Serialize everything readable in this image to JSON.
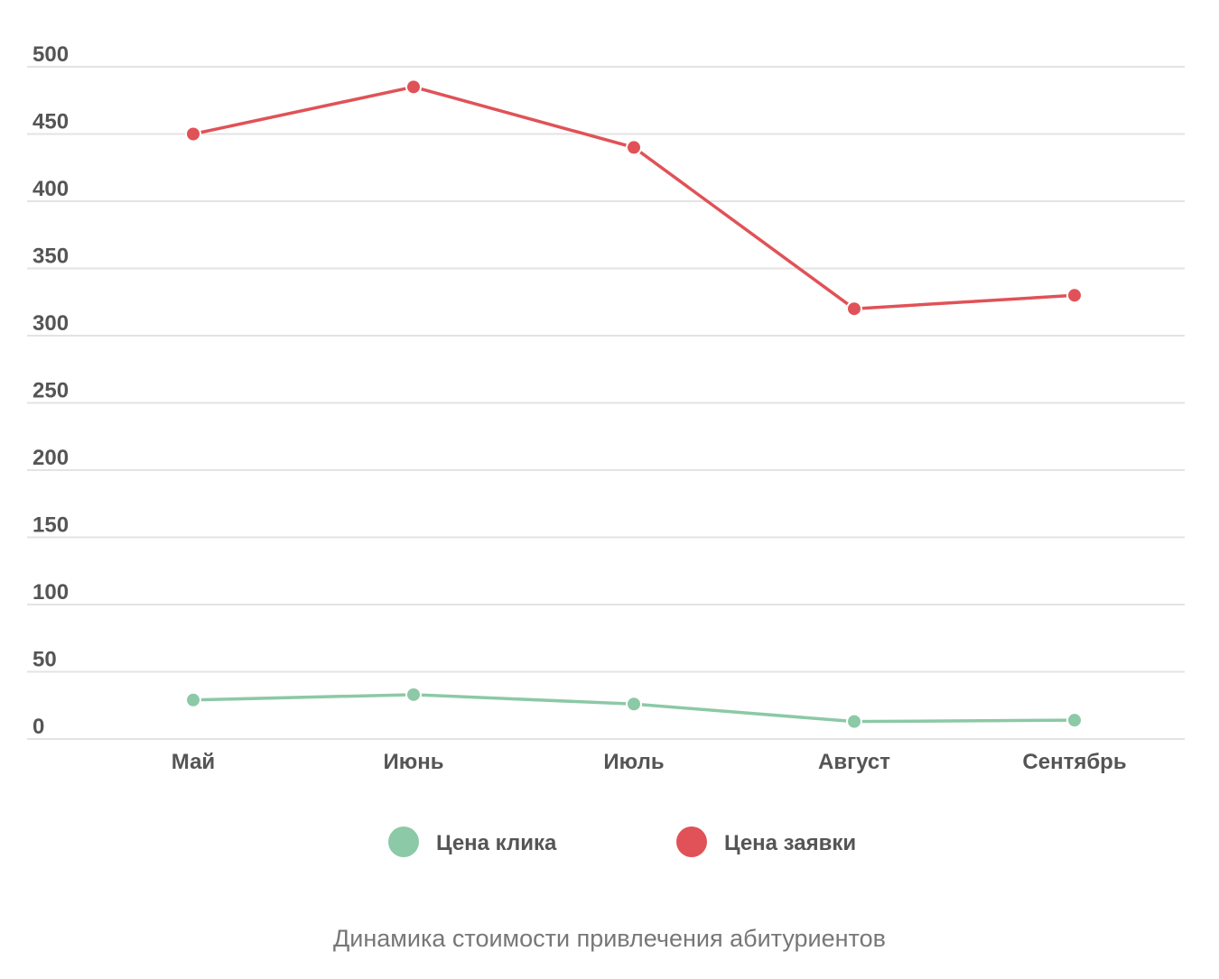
{
  "chart_data": {
    "type": "line",
    "categories": [
      "Май",
      "Июнь",
      "Июль",
      "Август",
      "Сентябрь"
    ],
    "series": [
      {
        "name": "Цена клика",
        "color": "#8cc9a6",
        "values": [
          29,
          33,
          26,
          13,
          14
        ]
      },
      {
        "name": "Цена заявки",
        "color": "#e05257",
        "values": [
          450,
          485,
          440,
          320,
          330
        ]
      }
    ],
    "ylim": [
      0,
      500
    ],
    "yticks": [
      0,
      50,
      100,
      150,
      200,
      250,
      300,
      350,
      400,
      450,
      500
    ],
    "grid": true,
    "legend": "bottom",
    "caption": "Динамика стоимости привлечения абитуриентов"
  }
}
